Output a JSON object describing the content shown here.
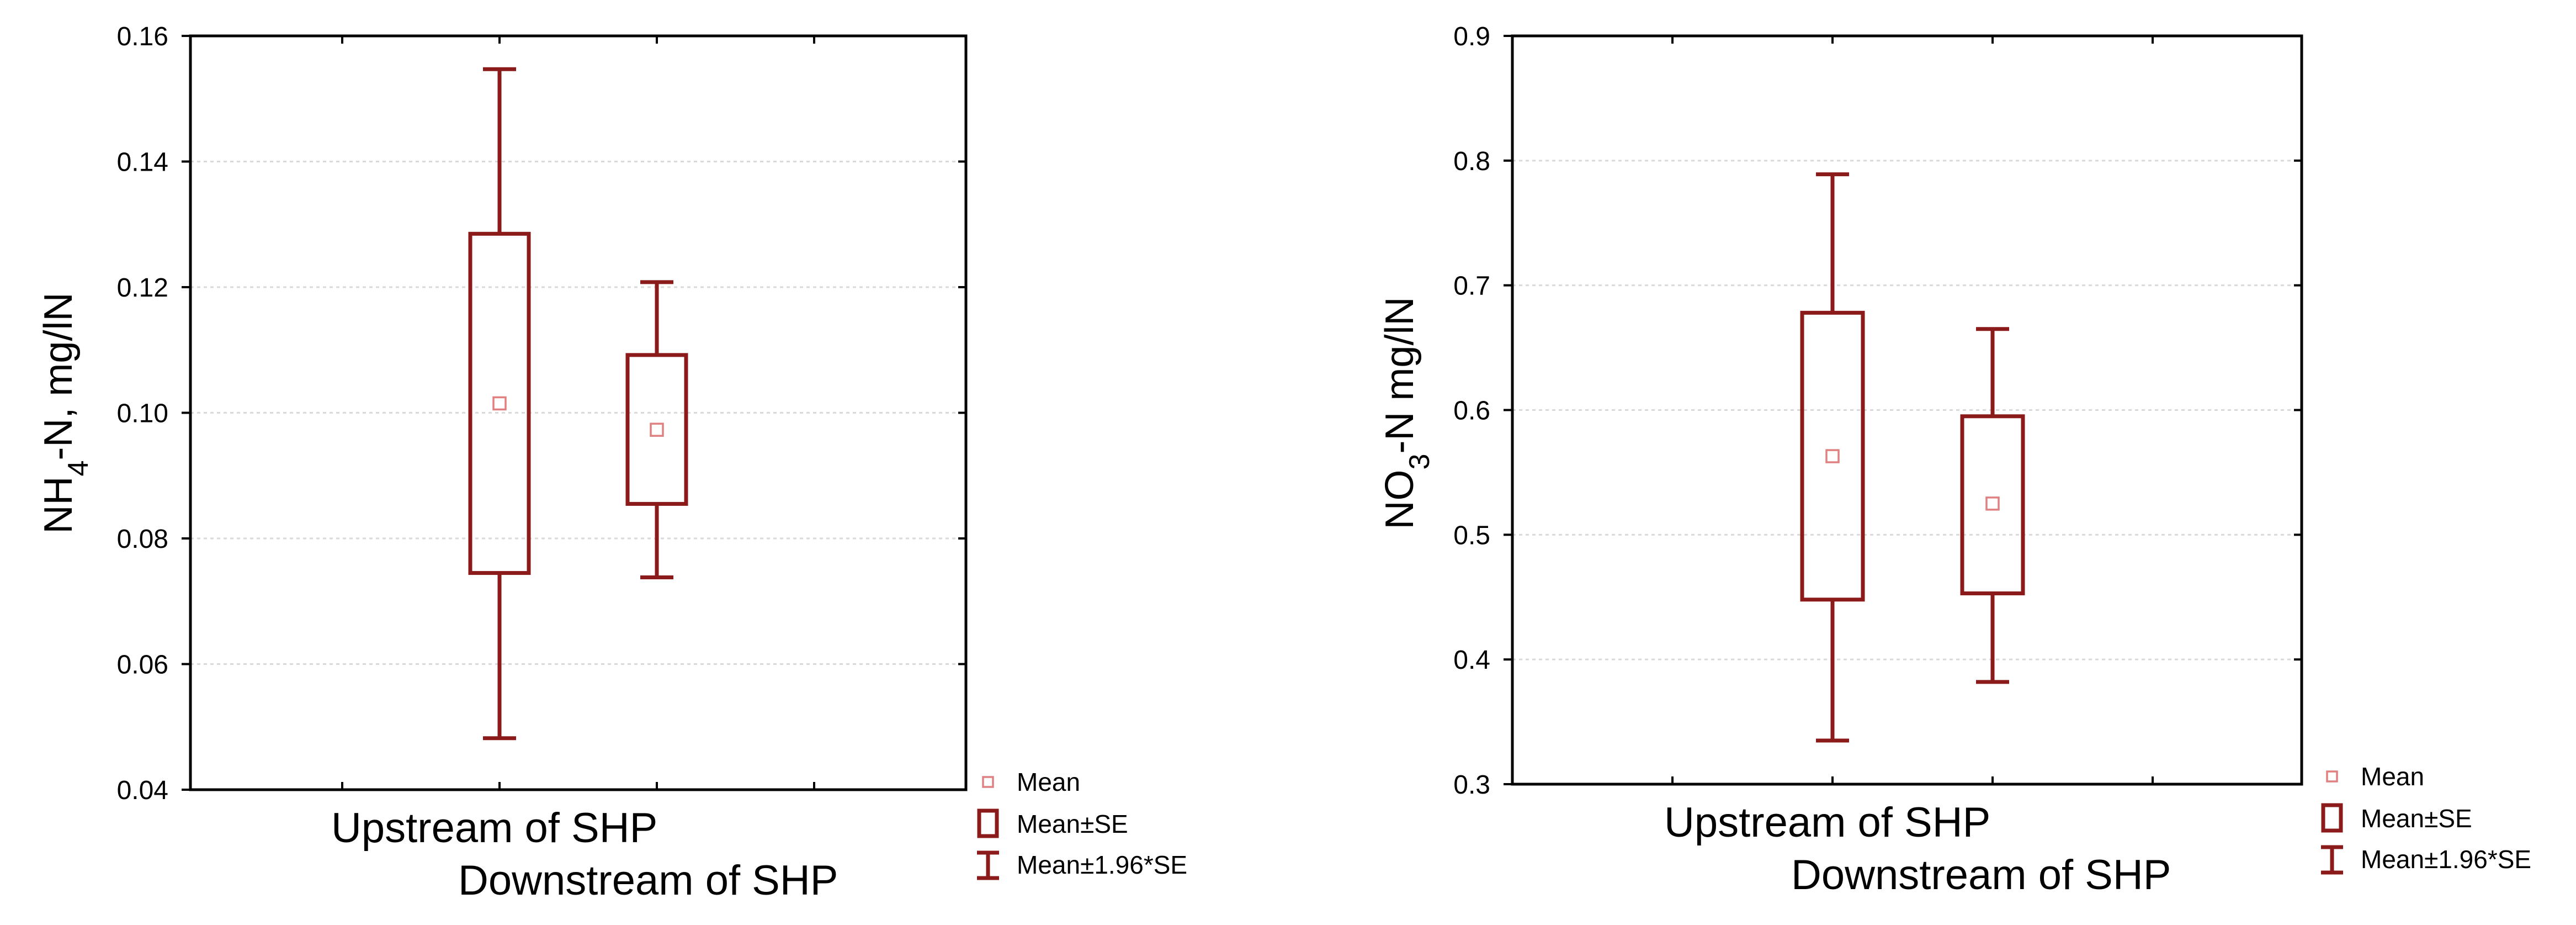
{
  "chart_data": [
    {
      "type": "box",
      "ylabel_parts": [
        "NH",
        "4",
        "-N, mg/lN"
      ],
      "ylim": [
        0.04,
        0.16
      ],
      "yticks": [
        "0.04",
        "0.06",
        "0.08",
        "0.10",
        "0.12",
        "0.14",
        "0.16"
      ],
      "grid": true,
      "categories": [
        "Upstream of SHP",
        "Downstream of SHP"
      ],
      "series": [
        {
          "category": "Upstream of SHP",
          "mean": 0.1015,
          "se_low": 0.0745,
          "se_high": 0.1285,
          "ci_low": 0.0482,
          "ci_high": 0.1547
        },
        {
          "category": "Downstream of SHP",
          "mean": 0.0973,
          "se_low": 0.0855,
          "se_high": 0.1092,
          "ci_low": 0.0738,
          "ci_high": 0.1208
        }
      ],
      "legend": {
        "position": "bottom-right",
        "items": [
          "Mean",
          "Mean±SE",
          "Mean±1.96*SE"
        ]
      }
    },
    {
      "type": "box",
      "ylabel_parts": [
        "NO",
        "3",
        "-N mg/lN"
      ],
      "ylim": [
        0.3,
        0.9
      ],
      "yticks": [
        "0.3",
        "0.4",
        "0.5",
        "0.6",
        "0.7",
        "0.8",
        "0.9"
      ],
      "grid": true,
      "categories": [
        "Upstream of SHP",
        "Downstream of SHP"
      ],
      "series": [
        {
          "category": "Upstream of SHP",
          "mean": 0.563,
          "se_low": 0.448,
          "se_high": 0.678,
          "ci_low": 0.335,
          "ci_high": 0.789
        },
        {
          "category": "Downstream of SHP",
          "mean": 0.525,
          "se_low": 0.453,
          "se_high": 0.595,
          "ci_low": 0.382,
          "ci_high": 0.665
        }
      ],
      "legend": {
        "position": "bottom-right",
        "items": [
          "Mean",
          "Mean±SE",
          "Mean±1.96*SE"
        ]
      }
    }
  ]
}
